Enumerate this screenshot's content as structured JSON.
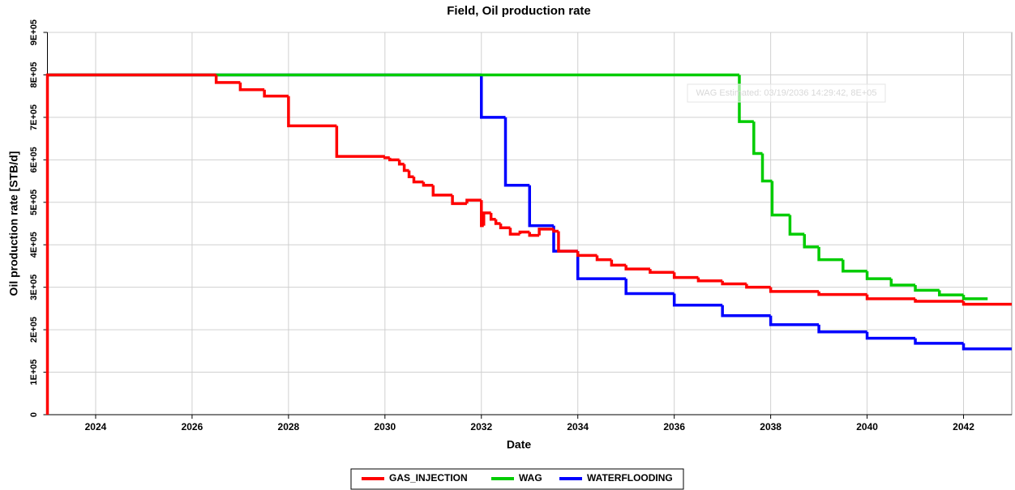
{
  "chart_data": {
    "type": "step",
    "title": "Field, Oil production rate",
    "x_label": "Date",
    "y_label": "Oil production rate [STB/d]",
    "annotation": "WAG Estimated: 03/19/2036 14:29:42, 8E+05",
    "xlim": [
      2023,
      2043
    ],
    "xticks": [
      2024,
      2026,
      2028,
      2030,
      2032,
      2034,
      2036,
      2038,
      2040,
      2042
    ],
    "ylim": [
      0,
      900000
    ],
    "yticks": [
      0,
      {
        "value": 100000,
        "label": "1E+05"
      },
      {
        "value": 200000,
        "label": "2E+05"
      },
      {
        "value": 300000,
        "label": "3E+05"
      },
      {
        "value": 400000,
        "label": "4E+05"
      },
      {
        "value": 500000,
        "label": "5E+05"
      },
      {
        "value": 600000,
        "label": "6E+05"
      },
      {
        "value": 700000,
        "label": "7E+05"
      },
      {
        "value": 800000,
        "label": "8E+05"
      },
      {
        "value": 900000,
        "label": "9E+05"
      }
    ],
    "grid": true,
    "legend": "bottom",
    "series": [
      {
        "name": "GAS_INJECTION",
        "color": "#ff0000",
        "x": [
          2023,
          2023,
          2026.5,
          2027,
          2027.5,
          2028,
          2029,
          2030,
          2030.1,
          2030.3,
          2030.4,
          2030.5,
          2030.6,
          2030.8,
          2031,
          2031.4,
          2031.7,
          2032,
          2032.05,
          2032.2,
          2032.3,
          2032.4,
          2032.6,
          2032.8,
          2033,
          2033.2,
          2033.5,
          2033.6,
          2034,
          2034.4,
          2034.7,
          2035,
          2035.5,
          2036,
          2036.5,
          2037,
          2037.5,
          2038,
          2039,
          2040,
          2041,
          2042,
          2043
        ],
        "values": [
          0,
          800000,
          782000,
          765000,
          750000,
          680000,
          608000,
          605000,
          600000,
          590000,
          575000,
          560000,
          548000,
          540000,
          517000,
          497000,
          505000,
          445000,
          475000,
          460000,
          450000,
          440000,
          425000,
          430000,
          422000,
          437000,
          432000,
          385000,
          375000,
          365000,
          352000,
          343000,
          335000,
          323000,
          315000,
          308000,
          300000,
          290000,
          283000,
          273000,
          267000,
          260000,
          260000
        ]
      },
      {
        "name": "WAG",
        "color": "#00cc00",
        "x": [
          2023,
          2037.35,
          2037.65,
          2037.83,
          2038.03,
          2038.4,
          2038.7,
          2039,
          2039.5,
          2040,
          2040.5,
          2041,
          2041.5,
          2042,
          2042.5
        ],
        "values": [
          800000,
          690000,
          615000,
          550000,
          470000,
          425000,
          395000,
          365000,
          338000,
          320000,
          305000,
          293000,
          282000,
          273000,
          273000
        ]
      },
      {
        "name": "WATERFLOODING",
        "color": "#0000ff",
        "x": [
          2023,
          2032,
          2032.5,
          2033,
          2033.5,
          2034,
          2035,
          2036,
          2037,
          2038,
          2039,
          2040,
          2041,
          2042,
          2043
        ],
        "values": [
          800000,
          700000,
          540000,
          445000,
          385000,
          320000,
          285000,
          258000,
          233000,
          212000,
          195000,
          180000,
          168000,
          155000,
          155000
        ]
      }
    ]
  }
}
